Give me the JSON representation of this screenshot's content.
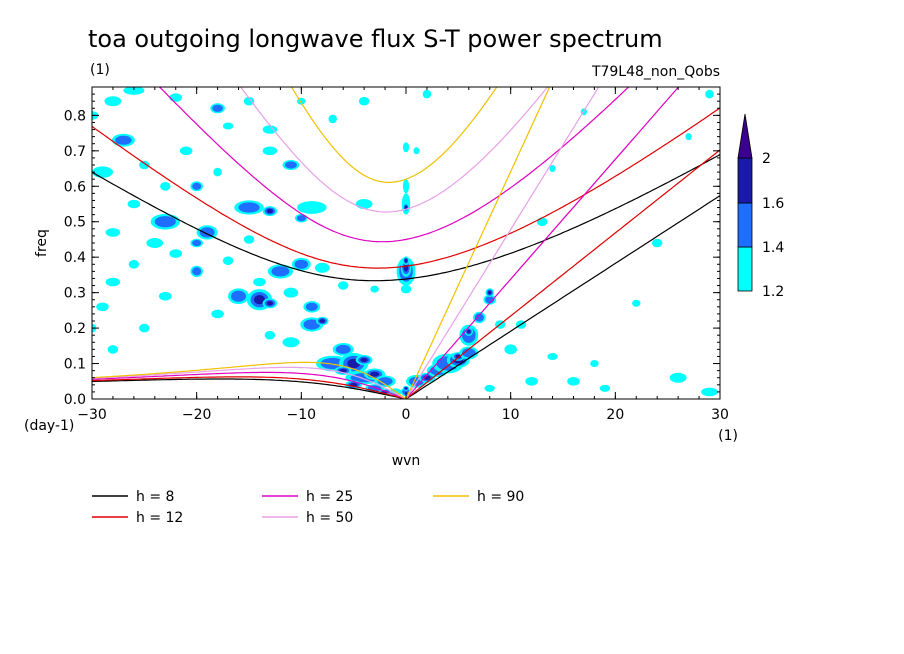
{
  "header": {
    "title": "toa outgoing longwave flux S-T power spectrum",
    "units": "(1)",
    "run_label": "T79L48_non_Qobs"
  },
  "axes": {
    "x_label": "wvn",
    "y_label": "freq",
    "y_unit": "(day-1)",
    "x_unit": "(1)"
  },
  "chart_data": {
    "type": "contour",
    "title": "toa outgoing longwave flux S-T power spectrum",
    "xlabel": "wvn",
    "ylabel": "freq",
    "xlim": [
      -30,
      30
    ],
    "ylim": [
      0,
      0.88
    ],
    "xticks": [
      -30,
      -20,
      -10,
      0,
      10,
      20,
      30
    ],
    "yticks": [
      0.0,
      0.1,
      0.2,
      0.3,
      0.4,
      0.5,
      0.6,
      0.7,
      0.8
    ],
    "colorbar": {
      "levels": [
        1.2,
        1.4,
        1.6,
        2
      ],
      "labels": [
        "1.2",
        "1.4",
        "1.6",
        "2"
      ],
      "colors": [
        "#00ffff",
        "#1e6fff",
        "#1a1aa8",
        "#3a0090"
      ]
    },
    "dispersion_curves": [
      {
        "label": "h = 8",
        "h": 8,
        "color": "#000000"
      },
      {
        "label": "h = 12",
        "h": 12,
        "color": "#e00000"
      },
      {
        "label": "h = 25",
        "h": 25,
        "color": "#e000c0"
      },
      {
        "label": "h = 50",
        "h": 50,
        "color": "#e8a0e8"
      },
      {
        "label": "h = 90",
        "h": 90,
        "color": "#f0c000"
      }
    ]
  }
}
